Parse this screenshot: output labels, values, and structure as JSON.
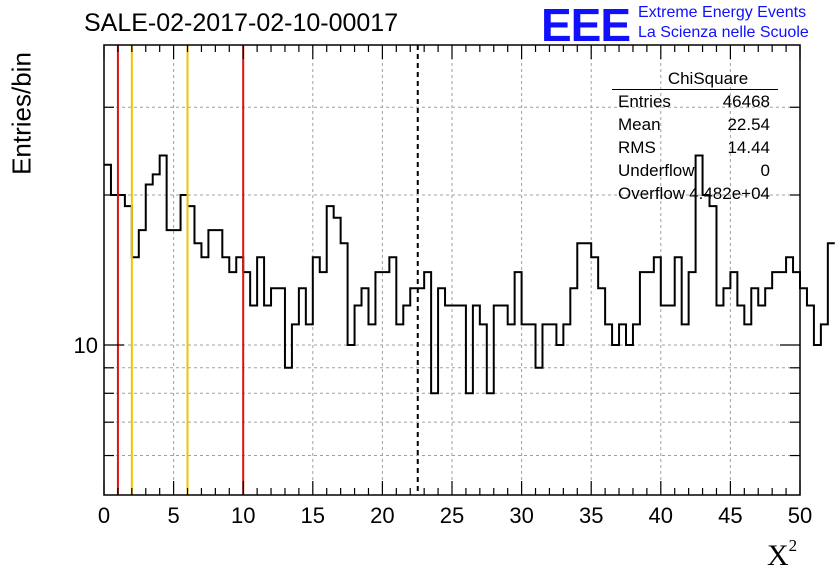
{
  "header": {
    "title": "SALE-02-2017-02-10-00017",
    "logo_text": "EEE",
    "logo_line1": "Extreme Energy Events",
    "logo_line2": "La Scienza nelle Scuole"
  },
  "stats": {
    "name": "ChiSquare",
    "rows": [
      {
        "key": "Entries",
        "value": "46468"
      },
      {
        "key": "Mean",
        "value": "22.54"
      },
      {
        "key": "RMS",
        "value": "14.44"
      },
      {
        "key": "Underflow",
        "value": "0"
      },
      {
        "key": "Overflow",
        "value": "4.482e+04"
      }
    ]
  },
  "colors": {
    "histogram": "#000000",
    "red_lines": "#dd1111",
    "yellow_lines": "#f2c200",
    "grid": "#a0a0a0",
    "logo": "#1010ff"
  },
  "chart_data": {
    "type": "histogram",
    "title": "SALE-02-2017-02-10-00017",
    "xlabel": "X²",
    "ylabel": "Entries/bin",
    "xlim": [
      0,
      50
    ],
    "ylim": [
      5,
      40
    ],
    "ylog": true,
    "grid": true,
    "bin_width": 0.5,
    "x_ticks": [
      0,
      5,
      10,
      15,
      20,
      25,
      30,
      35,
      40,
      45,
      50
    ],
    "y_ticks": [
      10
    ],
    "values": [
      23,
      20,
      20,
      19,
      15,
      17,
      21,
      22,
      24,
      17,
      17,
      20,
      19,
      16,
      15,
      17,
      17,
      15,
      14,
      15,
      14,
      12,
      15,
      12,
      13,
      13,
      9,
      11,
      13,
      11,
      15,
      14,
      19,
      18,
      16,
      10,
      12,
      13,
      11,
      14,
      14,
      15,
      11,
      12,
      13,
      13,
      14,
      8,
      13,
      12,
      12,
      12,
      8,
      12,
      11,
      8,
      12,
      12,
      11,
      14,
      11,
      11,
      9,
      11,
      11,
      10,
      11,
      13,
      16,
      16,
      15,
      13,
      11,
      10,
      11,
      10,
      11,
      14,
      14,
      15,
      12,
      12,
      15,
      11,
      14,
      24,
      20,
      19,
      12,
      13,
      14,
      12,
      11,
      13,
      12,
      13,
      14,
      14,
      15,
      14,
      13,
      12,
      10,
      11,
      16
    ],
    "vertical_lines": [
      {
        "x": 1,
        "color": "red",
        "style": "solid"
      },
      {
        "x": 2,
        "color": "yellow",
        "style": "solid"
      },
      {
        "x": 6,
        "color": "yellow",
        "style": "solid"
      },
      {
        "x": 10,
        "color": "red",
        "style": "solid"
      },
      {
        "x": 22.54,
        "color": "black",
        "style": "dashed"
      }
    ]
  }
}
